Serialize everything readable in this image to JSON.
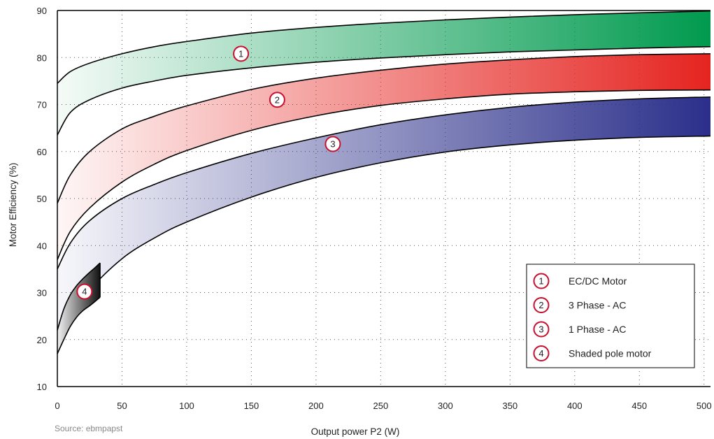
{
  "chart_data": {
    "type": "area",
    "title": "",
    "xlabel": "Output power P2 (W)",
    "ylabel": "Motor Efficiency (%)",
    "xlim": [
      0,
      505
    ],
    "ylim": [
      10,
      90
    ],
    "x_ticks": [
      0,
      50,
      100,
      150,
      200,
      250,
      300,
      350,
      400,
      450,
      500
    ],
    "y_ticks": [
      10,
      20,
      30,
      40,
      50,
      60,
      70,
      80,
      90
    ],
    "grid": true,
    "legend_position": "bottom-right",
    "source": "Source: ebmpapst",
    "series": [
      {
        "id": "1",
        "name": "EC/DC Motor",
        "color": "#009a4e",
        "x": [
          0,
          10,
          25,
          50,
          75,
          100,
          150,
          200,
          250,
          300,
          350,
          400,
          450,
          505
        ],
        "upper": [
          74.5,
          77.0,
          78.8,
          80.8,
          82.3,
          83.4,
          85.2,
          86.4,
          87.3,
          88.0,
          88.6,
          89.1,
          89.5,
          89.9
        ],
        "lower": [
          63.5,
          68.3,
          71.0,
          73.5,
          75.0,
          76.2,
          77.8,
          79.0,
          79.9,
          80.6,
          81.2,
          81.6,
          82.0,
          82.3
        ]
      },
      {
        "id": "2",
        "name": "3 Phase - AC",
        "color": "#e52420",
        "x": [
          0,
          10,
          25,
          50,
          75,
          100,
          150,
          200,
          250,
          300,
          350,
          400,
          450,
          505
        ],
        "upper": [
          49.0,
          55.0,
          60.0,
          64.8,
          67.5,
          69.7,
          73.2,
          75.6,
          77.3,
          78.6,
          79.5,
          80.2,
          80.6,
          80.8
        ],
        "lower": [
          37.0,
          43.0,
          48.0,
          53.5,
          57.3,
          60.2,
          64.5,
          67.6,
          69.8,
          71.2,
          72.2,
          72.7,
          73.0,
          73.1
        ]
      },
      {
        "id": "3",
        "name": "1 Phase - AC",
        "color": "#2b2f8a",
        "x": [
          0,
          10,
          25,
          50,
          75,
          100,
          150,
          200,
          250,
          300,
          350,
          400,
          450,
          505
        ],
        "upper": [
          35.0,
          40.5,
          45.3,
          50.0,
          53.0,
          55.5,
          59.6,
          62.9,
          65.7,
          67.8,
          69.4,
          70.5,
          71.2,
          71.6
        ],
        "lower": [
          17.0,
          24.0,
          30.5,
          37.2,
          41.6,
          45.0,
          50.3,
          54.5,
          57.6,
          59.9,
          61.4,
          62.4,
          63.0,
          63.3
        ]
      },
      {
        "id": "4",
        "name": "Shaded pole motor",
        "color": "#111111",
        "x": [
          0,
          5,
          10,
          15,
          20,
          25,
          30,
          33
        ],
        "upper": [
          22.0,
          26.5,
          29.5,
          31.5,
          33.0,
          34.3,
          35.5,
          36.3
        ],
        "lower": [
          17.0,
          20.0,
          22.8,
          24.8,
          26.2,
          27.2,
          28.3,
          29.0
        ]
      }
    ],
    "markers": [
      {
        "label": "1",
        "x": 142,
        "y": 80.8
      },
      {
        "label": "2",
        "x": 170,
        "y": 71.0
      },
      {
        "label": "3",
        "x": 213,
        "y": 61.6
      },
      {
        "label": "4",
        "x": 21,
        "y": 30.2
      }
    ],
    "legend": [
      {
        "label": "1",
        "text": "EC/DC Motor"
      },
      {
        "label": "2",
        "text": "3 Phase - AC"
      },
      {
        "label": "3",
        "text": "1 Phase - AC"
      },
      {
        "label": "4",
        "text": "Shaded pole motor"
      }
    ]
  },
  "colors": {
    "badge_ring": "#c8102e",
    "axis": "#000000",
    "grid": "#555555"
  }
}
